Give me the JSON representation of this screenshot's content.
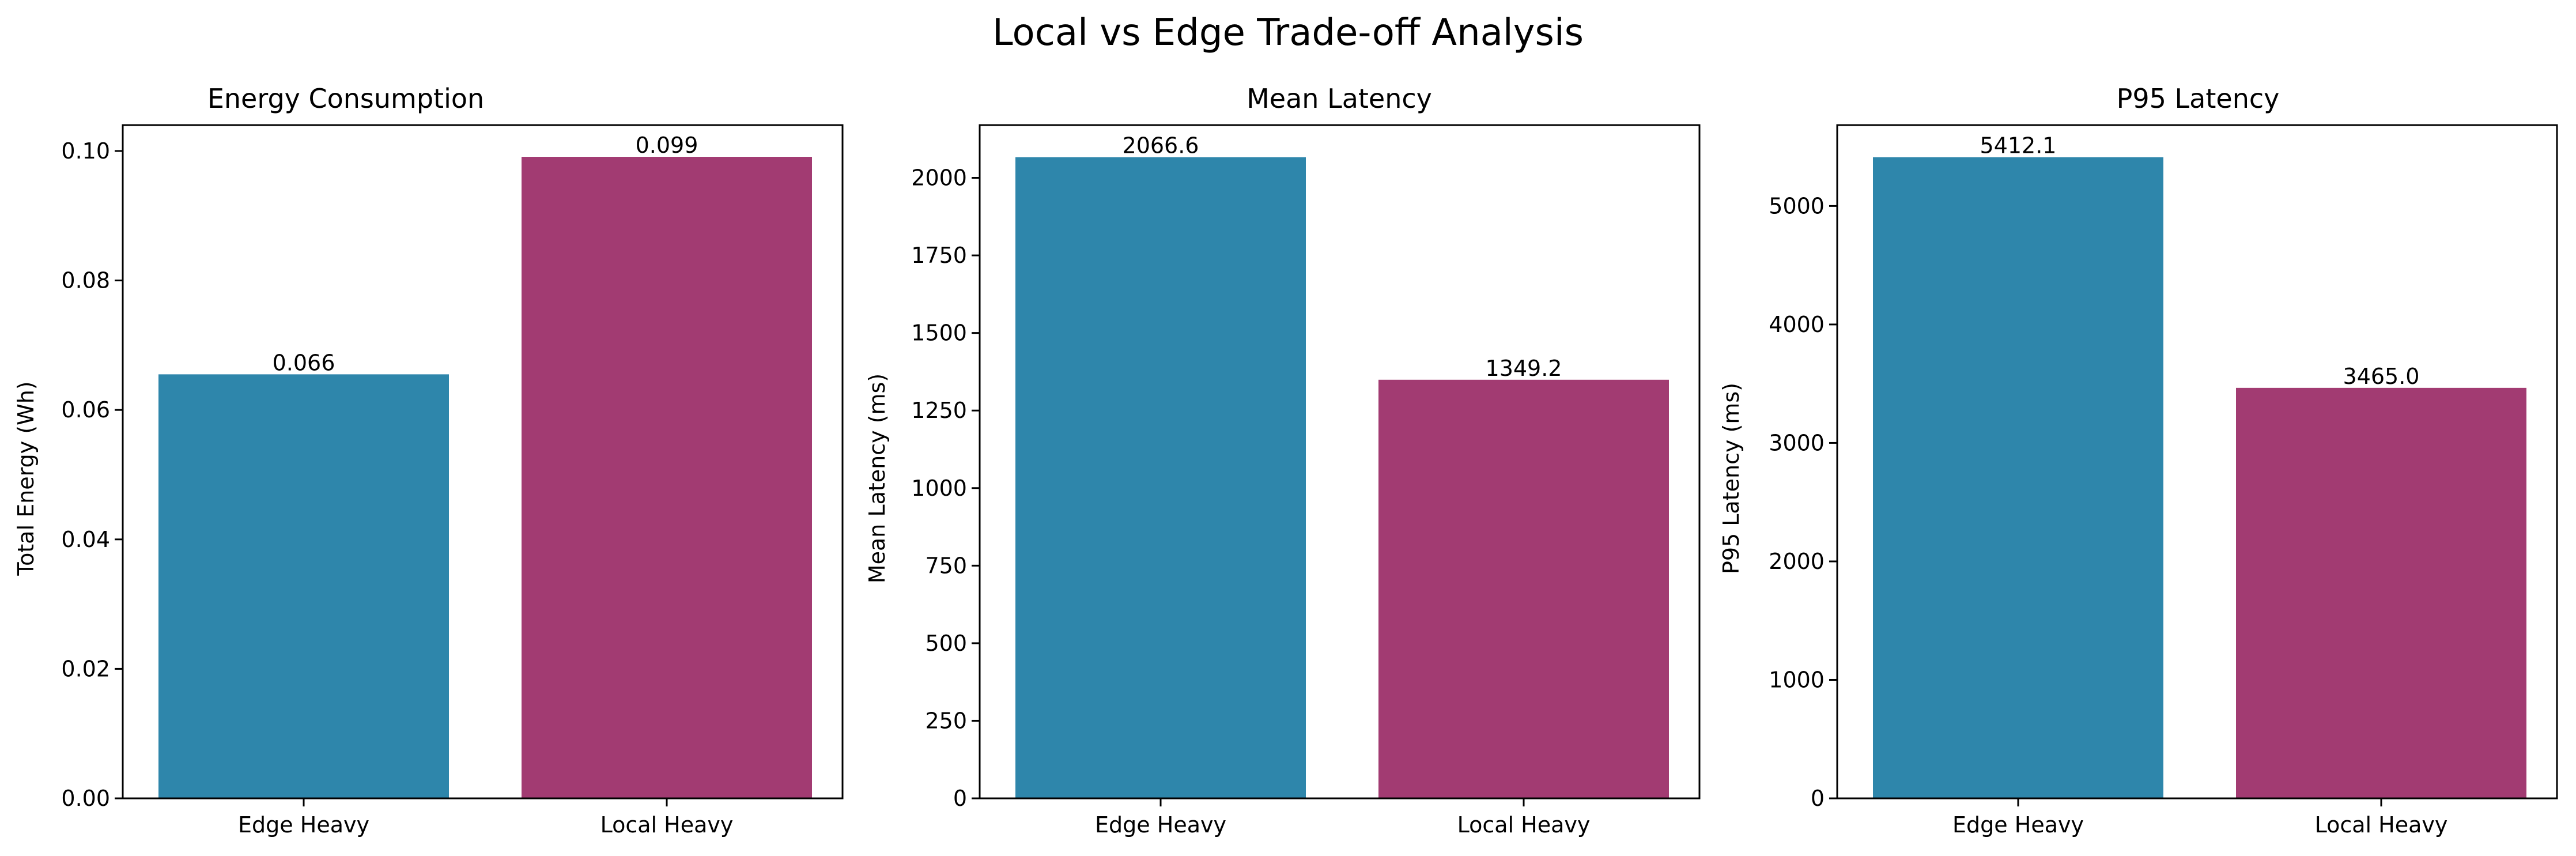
{
  "figure": {
    "suptitle": "Local vs Edge Trade-off Analysis"
  },
  "colors": {
    "Edge Heavy": "#2e86ab",
    "Local Heavy": "#a23b72",
    "axes": "#000000",
    "background": "#ffffff"
  },
  "chart_data": [
    {
      "type": "bar",
      "title": "Energy Consumption",
      "xlabel": "",
      "ylabel": "Total Energy (Wh)",
      "categories": [
        "Edge Heavy",
        "Local Heavy"
      ],
      "values": [
        0.0655,
        0.0991
      ],
      "value_labels": [
        "0.066",
        "0.099"
      ],
      "ylim": [
        0,
        0.104
      ],
      "yticks": [
        0.0,
        0.02,
        0.04,
        0.06,
        0.08,
        0.1
      ],
      "ytick_labels": [
        "0.00",
        "0.02",
        "0.04",
        "0.06",
        "0.08",
        "0.10"
      ],
      "grid": false
    },
    {
      "type": "bar",
      "title": "Mean Latency",
      "xlabel": "",
      "ylabel": "Mean Latency (ms)",
      "categories": [
        "Edge Heavy",
        "Local Heavy"
      ],
      "values": [
        2066.6,
        1349.2
      ],
      "value_labels": [
        "2066.6",
        "1349.2"
      ],
      "ylim": [
        0,
        2170
      ],
      "yticks": [
        0,
        250,
        500,
        750,
        1000,
        1250,
        1500,
        1750,
        2000
      ],
      "ytick_labels": [
        "0",
        "250",
        "500",
        "750",
        "1000",
        "1250",
        "1500",
        "1750",
        "2000"
      ],
      "grid": false
    },
    {
      "type": "bar",
      "title": "P95 Latency",
      "xlabel": "",
      "ylabel": "P95 Latency (ms)",
      "categories": [
        "Edge Heavy",
        "Local Heavy"
      ],
      "values": [
        5412.1,
        3465.0
      ],
      "value_labels": [
        "5412.1",
        "3465.0"
      ],
      "ylim": [
        0,
        5683
      ],
      "yticks": [
        0,
        1000,
        2000,
        3000,
        4000,
        5000
      ],
      "ytick_labels": [
        "0",
        "1000",
        "2000",
        "3000",
        "4000",
        "5000"
      ],
      "grid": false
    }
  ]
}
